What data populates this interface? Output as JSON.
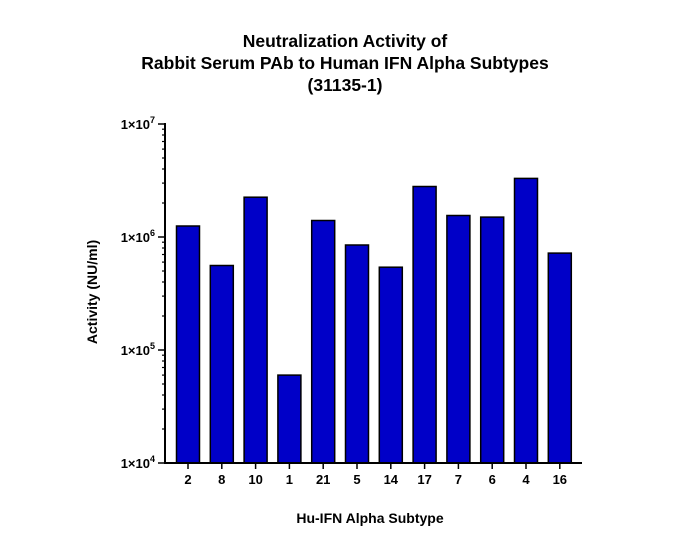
{
  "chart_data": {
    "type": "bar",
    "title_lines": [
      "Neutralization Activity of",
      "Rabbit Serum PAb to Human IFN Alpha Subtypes",
      "(31135-1)"
    ],
    "xlabel": "Hu-IFN Alpha Subtype",
    "ylabel": "Activity (NU/ml)",
    "yscale": "log",
    "ylim": [
      10000,
      10000000
    ],
    "yticks": [
      {
        "value": 10000,
        "mantissa": "1×10",
        "exp": "4"
      },
      {
        "value": 100000,
        "mantissa": "1×10",
        "exp": "5"
      },
      {
        "value": 1000000,
        "mantissa": "1×10",
        "exp": "6"
      },
      {
        "value": 10000000,
        "mantissa": "1×10",
        "exp": "7"
      }
    ],
    "categories": [
      "2",
      "8",
      "10",
      "1",
      "21",
      "5",
      "14",
      "17",
      "7",
      "6",
      "4",
      "16"
    ],
    "values": [
      1250000,
      560000,
      2250000,
      60000,
      1400000,
      850000,
      540000,
      2800000,
      1550000,
      1500000,
      3300000,
      720000
    ],
    "bar_color": "#0000c8",
    "bar_edge_color": "#000000",
    "grid": false,
    "legend": "none"
  }
}
